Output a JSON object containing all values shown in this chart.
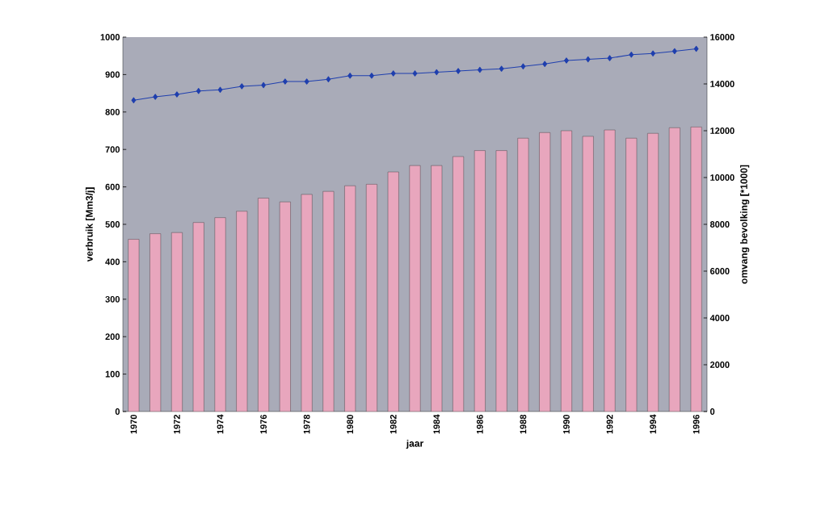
{
  "chart_data": {
    "type": "bar",
    "xlabel": "jaar",
    "ylabel": "verbruik [Mm3/j]",
    "y2label": "omvang bevolking [*1000]",
    "categories": [
      "1970",
      null,
      "1972",
      null,
      "1974",
      null,
      "1976",
      null,
      "1978",
      null,
      "1980",
      null,
      "1982",
      null,
      "1984",
      null,
      "1986",
      null,
      "1988",
      null,
      "1990",
      null,
      "1992",
      null,
      "1994",
      null,
      "1996"
    ],
    "series": [
      {
        "color": "#e8a6bd",
        "values": [
          460,
          475,
          478,
          505,
          518,
          535,
          570,
          560,
          580,
          588,
          603,
          607,
          640,
          657,
          657,
          681,
          697,
          697,
          730,
          745,
          750,
          735,
          752,
          730,
          743,
          758,
          760
        ]
      },
      {
        "type": "line",
        "axis": "y2",
        "color": "#1f3fae",
        "marker": "diamond",
        "values": [
          13300,
          13450,
          13550,
          13700,
          13750,
          13900,
          13950,
          14100,
          14100,
          14200,
          14350,
          14350,
          14450,
          14450,
          14500,
          14550,
          14600,
          14650,
          14750,
          14850,
          15000,
          15050,
          15100,
          15250,
          15300,
          15400,
          15500
        ]
      }
    ],
    "ylim": [
      0,
      1000
    ],
    "yticks": [
      0,
      100,
      200,
      300,
      400,
      500,
      600,
      700,
      800,
      900,
      1000
    ],
    "y2lim": [
      0,
      16000
    ],
    "y2ticks": [
      0,
      2000,
      4000,
      6000,
      8000,
      10000,
      12000,
      14000,
      16000
    ]
  }
}
